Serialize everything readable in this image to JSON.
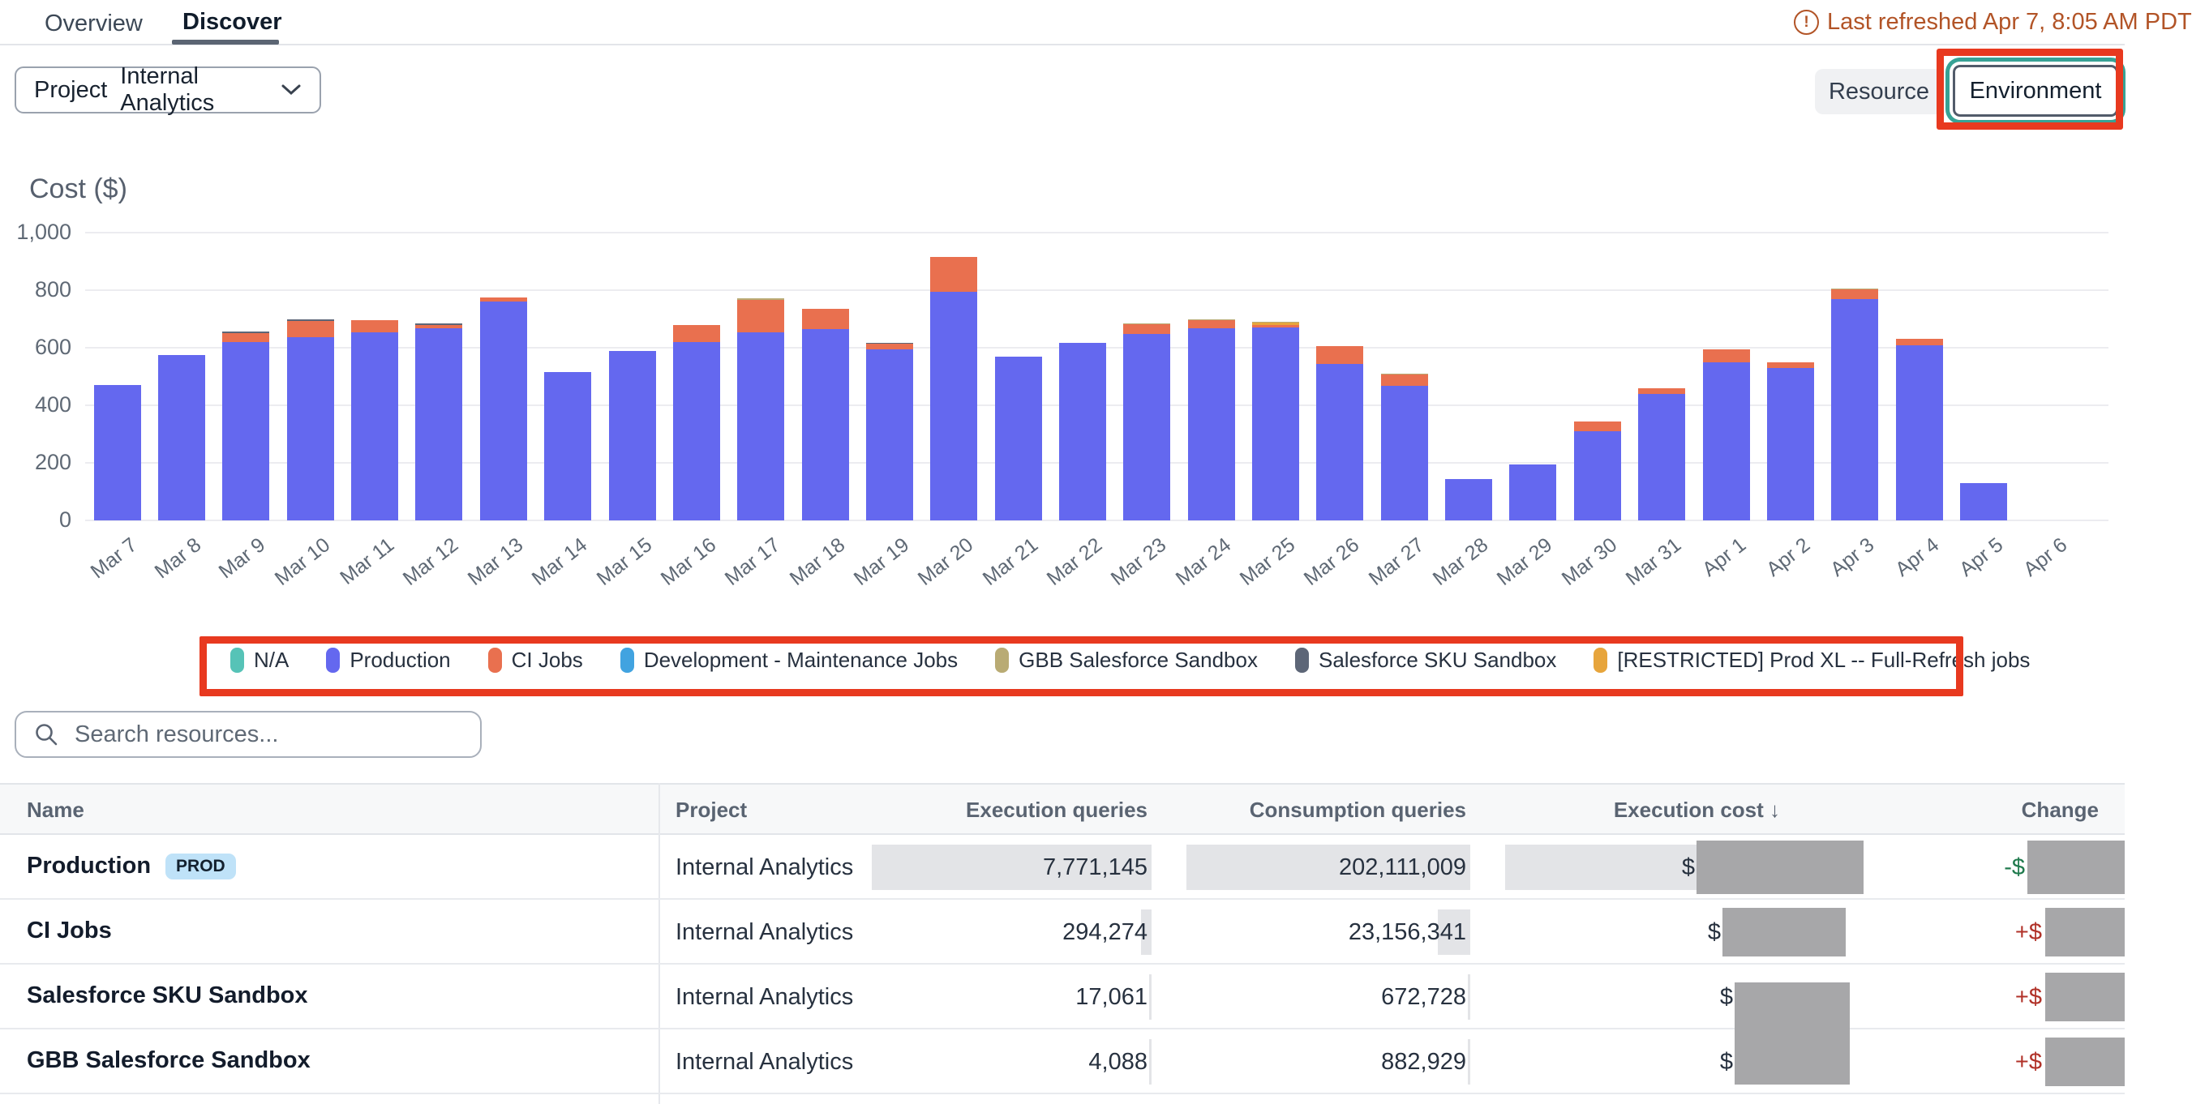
{
  "header": {
    "tabs": [
      {
        "label": "Overview",
        "active": false
      },
      {
        "label": "Discover",
        "active": true
      }
    ],
    "last_refreshed": "Last refreshed Apr 7, 8:05 AM PDT"
  },
  "filters": {
    "project_label": "Project",
    "project_value": "Internal Analytics",
    "resource_button": "Resource",
    "environment_button": "Environment"
  },
  "chart_data": {
    "type": "bar",
    "stacked": true,
    "title": "Cost ($)",
    "xlabel": "",
    "ylabel": "Cost ($)",
    "ylim": [
      0,
      1000
    ],
    "yticks": [
      0,
      200,
      400,
      600,
      800,
      1000
    ],
    "ytick_labels": [
      "0",
      "200",
      "400",
      "600",
      "800",
      "1,000"
    ],
    "grid": true,
    "legend_position": "bottom",
    "categories": [
      "Mar 7",
      "Mar 8",
      "Mar 9",
      "Mar 10",
      "Mar 11",
      "Mar 12",
      "Mar 13",
      "Mar 14",
      "Mar 15",
      "Mar 16",
      "Mar 17",
      "Mar 18",
      "Mar 19",
      "Mar 20",
      "Mar 21",
      "Mar 22",
      "Mar 23",
      "Mar 24",
      "Mar 25",
      "Mar 26",
      "Mar 27",
      "Mar 28",
      "Mar 29",
      "Mar 30",
      "Mar 31",
      "Apr 1",
      "Apr 2",
      "Apr 3",
      "Apr 4",
      "Apr 5",
      "Apr 6"
    ],
    "series": [
      {
        "name": "N/A",
        "color": "#56c3b7",
        "values": [
          0,
          0,
          0,
          0,
          0,
          0,
          0,
          0,
          0,
          0,
          0,
          0,
          0,
          0,
          0,
          0,
          0,
          0,
          0,
          0,
          0,
          0,
          0,
          0,
          0,
          0,
          0,
          0,
          0,
          0,
          0
        ]
      },
      {
        "name": "Production",
        "color": "#6468ef",
        "values": [
          470,
          575,
          620,
          636,
          655,
          668,
          760,
          515,
          590,
          620,
          655,
          665,
          595,
          795,
          570,
          617,
          648,
          667,
          670,
          545,
          468,
          145,
          195,
          310,
          440,
          550,
          530,
          770,
          610,
          130,
          0
        ]
      },
      {
        "name": "CI Jobs",
        "color": "#e9704f",
        "values": [
          0,
          0,
          30,
          57,
          40,
          12,
          15,
          0,
          0,
          60,
          112,
          70,
          18,
          120,
          0,
          0,
          34,
          28,
          8,
          62,
          40,
          0,
          0,
          35,
          20,
          45,
          20,
          32,
          22,
          0,
          0
        ]
      },
      {
        "name": "Development - Maintenance Jobs",
        "color": "#41a3e0",
        "values": [
          0,
          0,
          0,
          0,
          0,
          0,
          0,
          0,
          0,
          0,
          0,
          0,
          0,
          0,
          0,
          0,
          0,
          0,
          0,
          0,
          0,
          0,
          0,
          0,
          0,
          0,
          0,
          0,
          0,
          0,
          0
        ]
      },
      {
        "name": "Salesforce SKU Sandbox",
        "color": "#5d6677",
        "values": [
          0,
          0,
          8,
          5,
          0,
          6,
          0,
          0,
          0,
          0,
          0,
          0,
          4,
          0,
          0,
          0,
          0,
          0,
          0,
          0,
          0,
          0,
          0,
          0,
          0,
          0,
          0,
          0,
          0,
          0,
          0
        ]
      },
      {
        "name": "[RESTRICTED] Prod XL -- Full-Refresh jobs",
        "color": "#e7a53c",
        "values": [
          0,
          0,
          0,
          0,
          0,
          0,
          0,
          0,
          0,
          0,
          0,
          0,
          0,
          0,
          0,
          0,
          0,
          0,
          10,
          0,
          0,
          0,
          0,
          0,
          0,
          0,
          0,
          0,
          0,
          0,
          0
        ]
      },
      {
        "name": "GBB Salesforce Sandbox",
        "color": "#b9ab74",
        "values": [
          0,
          0,
          0,
          0,
          0,
          0,
          0,
          0,
          0,
          0,
          4,
          0,
          0,
          0,
          0,
          0,
          4,
          4,
          3,
          0,
          3,
          0,
          0,
          0,
          0,
          0,
          0,
          3,
          0,
          0,
          0
        ]
      }
    ]
  },
  "legend": {
    "items": [
      {
        "label": "N/A",
        "color": "#56c3b7"
      },
      {
        "label": "Production",
        "color": "#6468ef"
      },
      {
        "label": "CI Jobs",
        "color": "#e9704f"
      },
      {
        "label": "Development - Maintenance Jobs",
        "color": "#41a3e0"
      },
      {
        "label": "GBB Salesforce Sandbox",
        "color": "#b9ab74"
      },
      {
        "label": "Salesforce SKU Sandbox",
        "color": "#5d6677"
      },
      {
        "label": "[RESTRICTED] Prod XL -- Full-Refresh jobs",
        "color": "#e7a53c"
      }
    ]
  },
  "search": {
    "placeholder": "Search resources..."
  },
  "table": {
    "columns": [
      "Name",
      "Project",
      "Execution queries",
      "Consumption queries",
      "Execution cost",
      "Change"
    ],
    "sort_column": "Execution cost",
    "sort_direction": "desc",
    "values_redacted": true,
    "rows": [
      {
        "name": "Production",
        "badge": "PROD",
        "project": "Internal Analytics",
        "execution_queries": "7,771,145",
        "consumption_queries": "202,111,009",
        "execution_cost_prefix": "$",
        "change_prefix": "-$",
        "change_direction": "down"
      },
      {
        "name": "CI Jobs",
        "badge": "",
        "project": "Internal Analytics",
        "execution_queries": "294,274",
        "consumption_queries": "23,156,341",
        "execution_cost_prefix": "$",
        "change_prefix": "+$",
        "change_direction": "up"
      },
      {
        "name": "Salesforce SKU Sandbox",
        "badge": "",
        "project": "Internal Analytics",
        "execution_queries": "17,061",
        "consumption_queries": "672,728",
        "execution_cost_prefix": "$",
        "change_prefix": "+$",
        "change_direction": "up"
      },
      {
        "name": "GBB Salesforce Sandbox",
        "badge": "",
        "project": "Internal Analytics",
        "execution_queries": "4,088",
        "consumption_queries": "882,929",
        "execution_cost_prefix": "$",
        "change_prefix": "+$",
        "change_direction": "up"
      }
    ]
  },
  "annotation_color": "#e8391f"
}
